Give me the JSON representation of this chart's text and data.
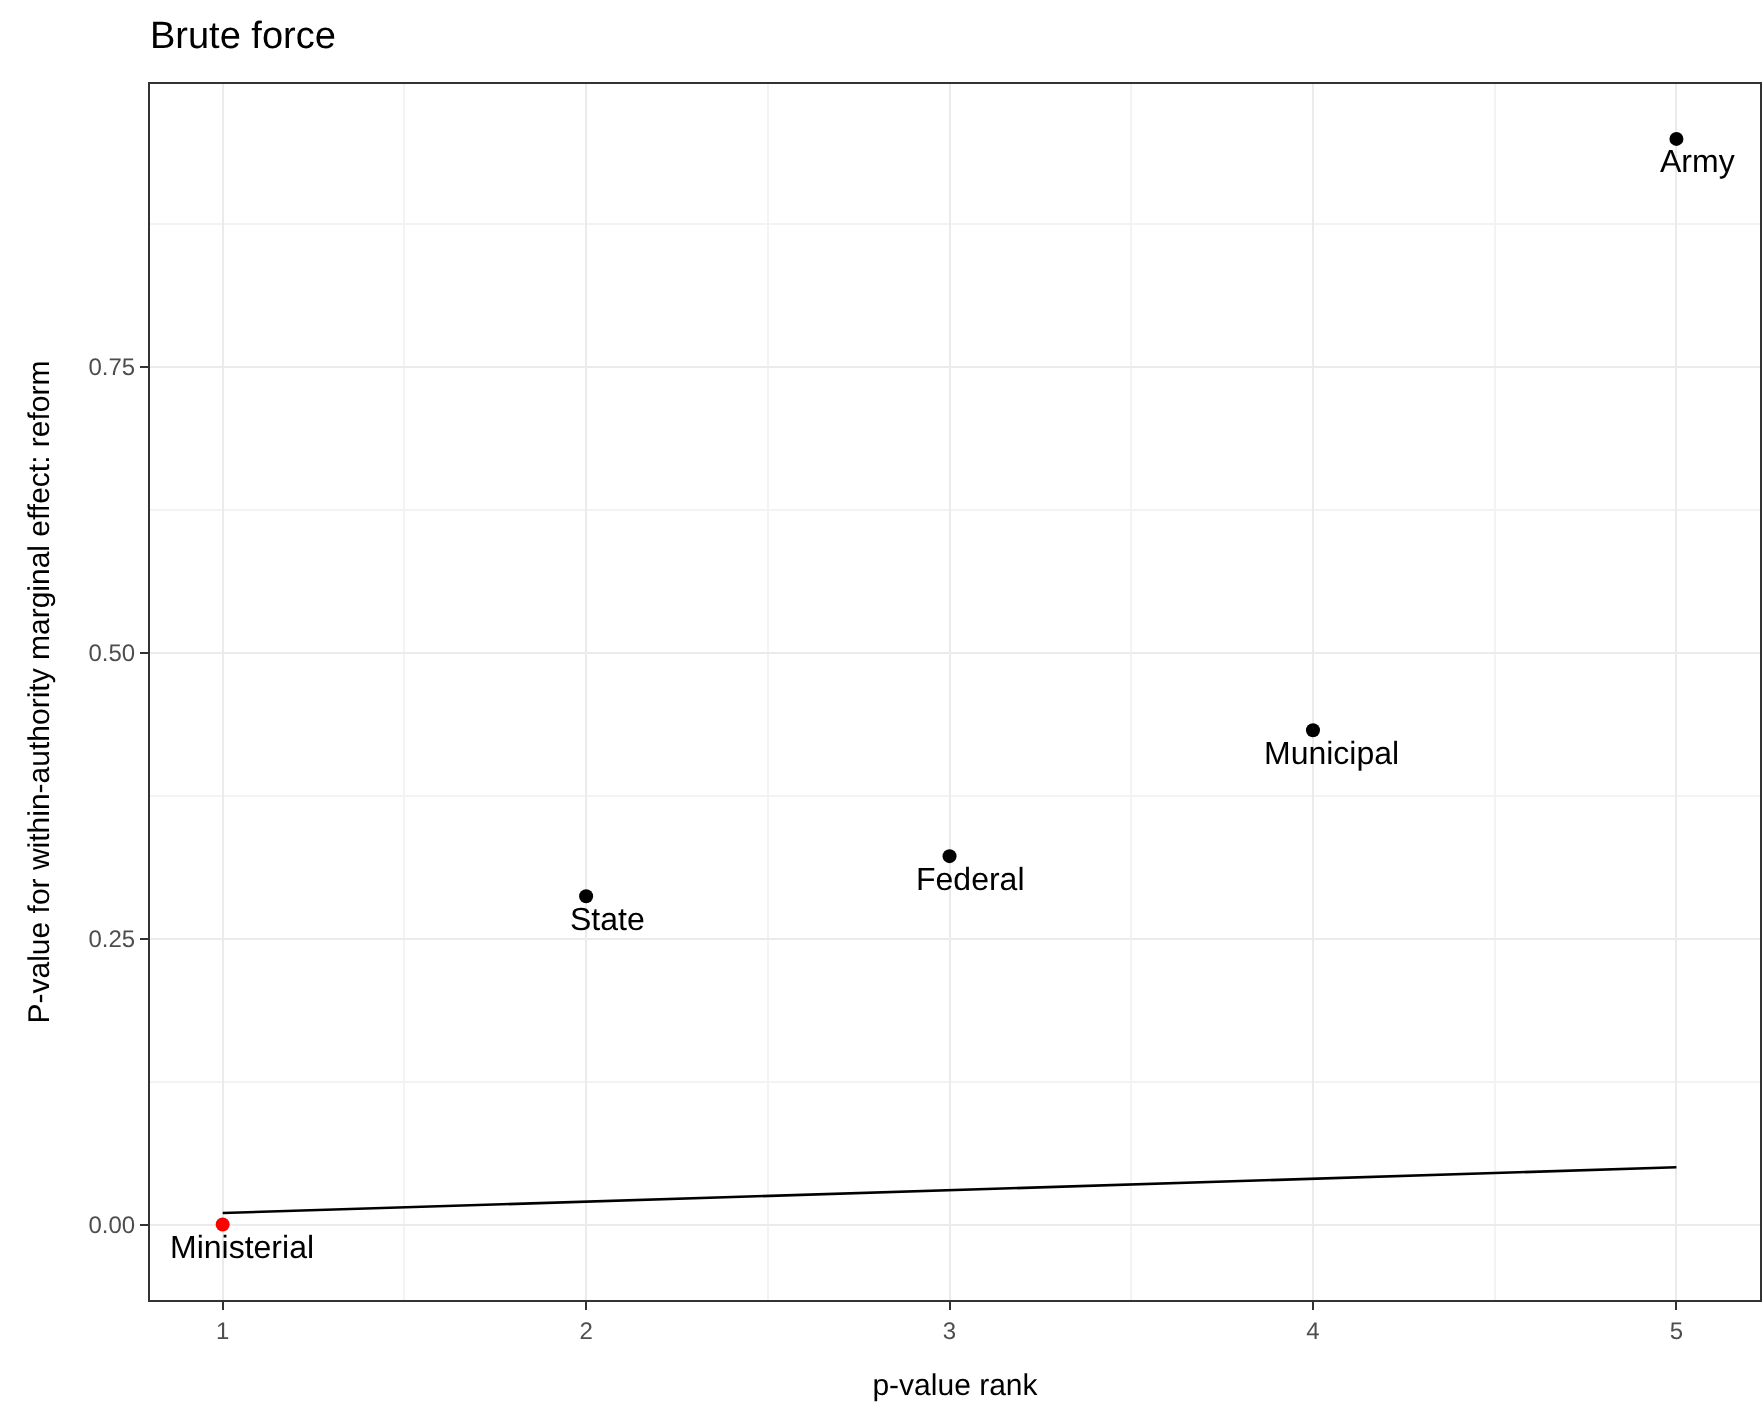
{
  "chart_data": {
    "type": "scatter",
    "title": "Brute force",
    "xlabel": "p-value rank",
    "ylabel": "P-value for within-authority marginal effect: reform",
    "xlim": [
      0.8,
      5.23
    ],
    "xticks": [
      1,
      2,
      3,
      4,
      5
    ],
    "ylim": [
      -0.066,
      0.997
    ],
    "yticks": [
      {
        "value": 0,
        "label": "0.00"
      },
      {
        "value": 0.25,
        "label": "0.25"
      },
      {
        "value": 0.5,
        "label": "0.50"
      },
      {
        "value": 0.75,
        "label": "0.75"
      }
    ],
    "grid": true,
    "series": [
      {
        "marker": "circle",
        "x": [
          1,
          2,
          3,
          4,
          5
        ],
        "values": [
          0.0,
          0.287,
          0.322,
          0.432,
          0.949
        ],
        "colors": [
          "#ff0000",
          "#000000",
          "#000000",
          "#000000",
          "#000000"
        ]
      },
      {
        "type": "line",
        "x": [
          1,
          5
        ],
        "values": [
          0.01,
          0.05
        ],
        "color": "#000000",
        "line_style": "solid"
      }
    ],
    "annotations": [
      {
        "text": "Ministerial",
        "x": 1,
        "y": 0.0
      },
      {
        "text": "State",
        "x": 2,
        "y": 0.287
      },
      {
        "text": "Federal",
        "x": 3,
        "y": 0.322
      },
      {
        "text": "Municipal",
        "x": 4,
        "y": 0.432
      },
      {
        "text": "Army",
        "x": 5,
        "y": 0.949
      }
    ]
  }
}
